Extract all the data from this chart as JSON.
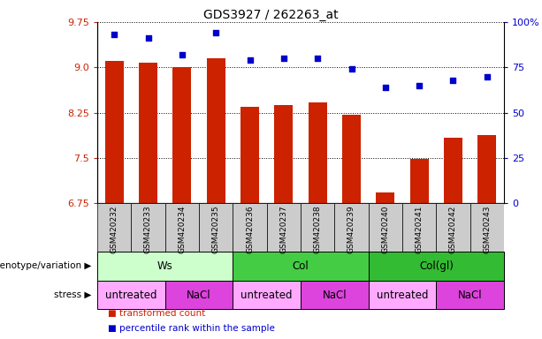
{
  "title": "GDS3927 / 262263_at",
  "samples": [
    "GSM420232",
    "GSM420233",
    "GSM420234",
    "GSM420235",
    "GSM420236",
    "GSM420237",
    "GSM420238",
    "GSM420239",
    "GSM420240",
    "GSM420241",
    "GSM420242",
    "GSM420243"
  ],
  "bar_values": [
    9.1,
    9.08,
    9.0,
    9.15,
    8.35,
    8.38,
    8.42,
    8.22,
    6.92,
    7.48,
    7.83,
    7.88
  ],
  "dot_values": [
    93,
    91,
    82,
    94,
    79,
    80,
    80,
    74,
    64,
    65,
    68,
    70
  ],
  "ylim_left": [
    6.75,
    9.75
  ],
  "ylim_right": [
    0,
    100
  ],
  "yticks_left": [
    6.75,
    7.5,
    8.25,
    9.0,
    9.75
  ],
  "yticks_right": [
    0,
    25,
    50,
    75,
    100
  ],
  "ytick_labels_right": [
    "0",
    "25",
    "50",
    "75",
    "100%"
  ],
  "bar_color": "#CC2200",
  "dot_color": "#0000CC",
  "bar_bottom": 6.75,
  "genotype_groups": [
    {
      "label": "Ws",
      "start": 0,
      "end": 4,
      "color": "#CCFFCC"
    },
    {
      "label": "Col",
      "start": 4,
      "end": 8,
      "color": "#44CC44"
    },
    {
      "label": "Col(gl)",
      "start": 8,
      "end": 12,
      "color": "#33BB33"
    }
  ],
  "stress_groups": [
    {
      "label": "untreated",
      "start": 0,
      "end": 2,
      "color": "#FFAAFF"
    },
    {
      "label": "NaCl",
      "start": 2,
      "end": 4,
      "color": "#DD44DD"
    },
    {
      "label": "untreated",
      "start": 4,
      "end": 6,
      "color": "#FFAAFF"
    },
    {
      "label": "NaCl",
      "start": 6,
      "end": 8,
      "color": "#DD44DD"
    },
    {
      "label": "untreated",
      "start": 8,
      "end": 10,
      "color": "#FFAAFF"
    },
    {
      "label": "NaCl",
      "start": 10,
      "end": 12,
      "color": "#DD44DD"
    }
  ],
  "legend_items": [
    {
      "label": "transformed count",
      "color": "#CC2200"
    },
    {
      "label": "percentile rank within the sample",
      "color": "#0000CC"
    }
  ],
  "tick_color_left": "#CC2200",
  "tick_color_right": "#0000CC",
  "sample_bg_color": "#CCCCCC",
  "arrow_color": "#888888"
}
